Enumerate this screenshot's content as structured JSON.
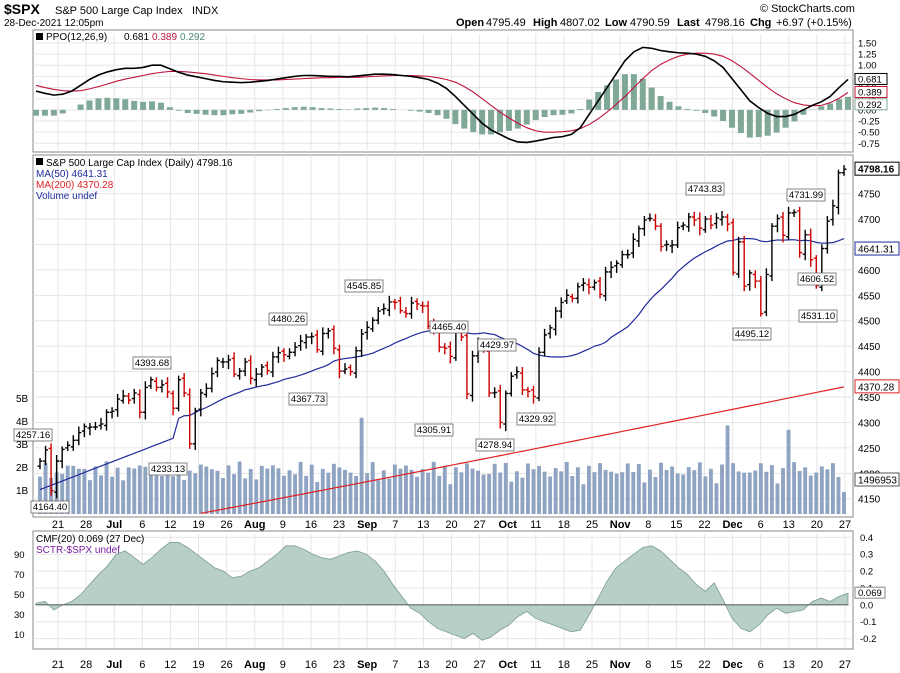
{
  "header": {
    "symbol": "$SPX",
    "name": "S&P 500 Large Cap Index",
    "exchange": "INDX",
    "date": "28-Dec-2021 12:05pm",
    "watermark": "© StockCharts.com",
    "open_label": "Open",
    "open": "4795.49",
    "high_label": "High",
    "high": "4807.02",
    "low_label": "Low",
    "low": "4790.59",
    "last_label": "Last",
    "last": "4798.16",
    "chg_label": "Chg",
    "chg": "+6.97 (+0.15%)"
  },
  "ppo_legend": {
    "label": "PPO(12,26,9)",
    "ppo": "0.681",
    "signal": "0.389",
    "hist": "0.292"
  },
  "price_legend": {
    "title": "S&P 500 Large Cap Index (Daily) 4798.16",
    "ma50": "MA(50) 4641.31",
    "ma200": "MA(200) 4370.28",
    "volume": "Volume undef"
  },
  "cmf_legend": {
    "cmf": "CMF(20) 0.069 (27 Dec)",
    "sctr": "SCTR-$SPX undef"
  },
  "colors": {
    "up": "#000000",
    "down": "#cc0000",
    "ma50": "#1f2a9c",
    "ma200": "#e02020",
    "volume": "#8fa3c2",
    "ppo": "#000000",
    "signal": "#c0143c",
    "hist": "#7fa897",
    "cmf": "#b7cfc7",
    "grid": "#e6e6e6"
  },
  "chart_data": [
    {
      "type": "candlestick",
      "title": "S&P 500 Large Cap Index (Daily) 4798.16",
      "y_axis_ticks": [
        4150,
        4200,
        4250,
        4300,
        4350,
        4400,
        4450,
        4500,
        4550,
        4600,
        4650,
        4700,
        4750
      ],
      "ylim": [
        4120,
        4820
      ],
      "x_labels": [
        "21",
        "28",
        "Jul",
        "6",
        "12",
        "19",
        "26",
        "Aug",
        "9",
        "16",
        "23",
        "Sep",
        "7",
        "13",
        "20",
        "27",
        "Oct",
        "11",
        "18",
        "25",
        "Nov",
        "8",
        "15",
        "22",
        "Dec",
        "6",
        "13",
        "20",
        "27"
      ],
      "closes": [
        4224,
        4246,
        4166,
        4224,
        4247,
        4255,
        4265,
        4280,
        4292,
        4291,
        4291,
        4297,
        4320,
        4322,
        4346,
        4352,
        4344,
        4358,
        4320,
        4369,
        4384,
        4369,
        4374,
        4360,
        4328,
        4384,
        4358,
        4258,
        4323,
        4358,
        4367,
        4396,
        4422,
        4419,
        4423,
        4395,
        4401,
        4419,
        4387,
        4395,
        4409,
        4402,
        4429,
        4437,
        4433,
        4438,
        4448,
        4460,
        4468,
        4469,
        4443,
        4475,
        4480,
        4446,
        4401,
        4405,
        4400,
        4441,
        4474,
        4487,
        4501,
        4519,
        4524,
        4537,
        4536,
        4520,
        4514,
        4535,
        4533,
        4529,
        4489,
        4481,
        4448,
        4446,
        4430,
        4480,
        4468,
        4356,
        4431,
        4455,
        4443,
        4358,
        4359,
        4300,
        4357,
        4391,
        4400,
        4364,
        4361,
        4351,
        4438,
        4472,
        4486,
        4519,
        4536,
        4550,
        4544,
        4567,
        4574,
        4566,
        4575,
        4552,
        4596,
        4605,
        4613,
        4630,
        4630,
        4660,
        4681,
        4698,
        4701,
        4686,
        4646,
        4650,
        4649,
        4683,
        4688,
        4704,
        4698,
        4682,
        4700,
        4688,
        4702,
        4704,
        4690,
        4595,
        4655,
        4568,
        4594,
        4578,
        4514,
        4591,
        4686,
        4701,
        4668,
        4712,
        4713,
        4634,
        4669,
        4620,
        4569,
        4642,
        4696,
        4726,
        4791,
        4798
      ],
      "ma50_end": 4641.31,
      "ma200_end": 4370.28,
      "annotations": [
        {
          "label": "4257.16"
        },
        {
          "label": "4164.40"
        },
        {
          "label": "4393.68"
        },
        {
          "label": "4233.13"
        },
        {
          "label": "4480.26"
        },
        {
          "label": "4367.73"
        },
        {
          "label": "4545.85"
        },
        {
          "label": "4465.40"
        },
        {
          "label": "4305.91"
        },
        {
          "label": "4429.97"
        },
        {
          "label": "4278.94"
        },
        {
          "label": "4329.92"
        },
        {
          "label": "4743.83"
        },
        {
          "label": "4495.12"
        },
        {
          "label": "4731.99"
        },
        {
          "label": "4606.52"
        },
        {
          "label": "4531.10"
        }
      ],
      "axis_boxes": {
        "last": "4798.16",
        "ma50": "4641.31",
        "ma200": "4370.28",
        "volume": "1496953"
      },
      "volume_ticks": [
        "5B",
        "4B",
        "3B",
        "2B",
        "1B"
      ]
    },
    {
      "type": "line",
      "name": "PPO(12,26,9)",
      "y_axis_ticks": [
        "1.50",
        "1.25",
        "1.00",
        "0.75",
        "0.50",
        "0.25",
        "0.00",
        "-0.25",
        "-0.50",
        "-0.75"
      ],
      "ylim": [
        -0.9,
        1.7
      ],
      "ppo": [
        0.42,
        0.37,
        0.33,
        0.35,
        0.42,
        0.55,
        0.68,
        0.78,
        0.85,
        0.9,
        0.93,
        0.93,
        0.95,
        1.0,
        1.0,
        0.92,
        0.84,
        0.78,
        0.74,
        0.7,
        0.66,
        0.63,
        0.62,
        0.61,
        0.62,
        0.64,
        0.66,
        0.69,
        0.72,
        0.75,
        0.77,
        0.77,
        0.76,
        0.75,
        0.75,
        0.74,
        0.76,
        0.78,
        0.8,
        0.8,
        0.79,
        0.77,
        0.75,
        0.72,
        0.68,
        0.6,
        0.48,
        0.3,
        0.1,
        -0.1,
        -0.3,
        -0.45,
        -0.55,
        -0.65,
        -0.72,
        -0.73,
        -0.7,
        -0.66,
        -0.62,
        -0.6,
        -0.55,
        -0.4,
        -0.1,
        0.2,
        0.5,
        0.8,
        1.1,
        1.3,
        1.4,
        1.38,
        1.33,
        1.3,
        1.28,
        1.27,
        1.25,
        1.2,
        1.1,
        0.95,
        0.7,
        0.45,
        0.2,
        0.05,
        -0.08,
        -0.15,
        -0.15,
        -0.1,
        0.0,
        0.1,
        0.18,
        0.3,
        0.5,
        0.681
      ],
      "signal": [
        0.55,
        0.5,
        0.46,
        0.43,
        0.42,
        0.43,
        0.47,
        0.52,
        0.58,
        0.64,
        0.69,
        0.73,
        0.77,
        0.81,
        0.84,
        0.86,
        0.86,
        0.85,
        0.83,
        0.81,
        0.78,
        0.75,
        0.72,
        0.7,
        0.68,
        0.67,
        0.67,
        0.67,
        0.68,
        0.69,
        0.7,
        0.71,
        0.72,
        0.72,
        0.73,
        0.73,
        0.73,
        0.74,
        0.75,
        0.76,
        0.77,
        0.77,
        0.77,
        0.76,
        0.75,
        0.72,
        0.68,
        0.62,
        0.52,
        0.4,
        0.25,
        0.1,
        -0.05,
        -0.18,
        -0.3,
        -0.4,
        -0.47,
        -0.5,
        -0.5,
        -0.49,
        -0.47,
        -0.42,
        -0.33,
        -0.2,
        -0.05,
        0.12,
        0.3,
        0.5,
        0.7,
        0.88,
        1.02,
        1.12,
        1.2,
        1.25,
        1.27,
        1.27,
        1.25,
        1.2,
        1.1,
        0.97,
        0.82,
        0.66,
        0.5,
        0.36,
        0.25,
        0.16,
        0.11,
        0.09,
        0.1,
        0.16,
        0.26,
        0.389
      ]
    },
    {
      "type": "area",
      "name": "CMF(20)",
      "y_axis_ticks_right": [
        "0.4",
        "0.3",
        "0.2",
        "0.1",
        "0.0",
        "-0.1",
        "-0.2"
      ],
      "y_axis_ticks_left": [
        "90",
        "70",
        "50",
        "30",
        "10"
      ],
      "ylim": [
        -0.25,
        0.42
      ],
      "values": [
        0.01,
        0.02,
        -0.03,
        0.0,
        0.02,
        0.06,
        0.12,
        0.18,
        0.23,
        0.3,
        0.32,
        0.28,
        0.24,
        0.28,
        0.33,
        0.37,
        0.37,
        0.34,
        0.3,
        0.26,
        0.22,
        0.2,
        0.16,
        0.17,
        0.2,
        0.22,
        0.26,
        0.3,
        0.35,
        0.35,
        0.33,
        0.3,
        0.28,
        0.27,
        0.29,
        0.31,
        0.32,
        0.3,
        0.26,
        0.2,
        0.12,
        0.05,
        -0.02,
        -0.05,
        -0.1,
        -0.14,
        -0.16,
        -0.18,
        -0.2,
        -0.17,
        -0.21,
        -0.19,
        -0.15,
        -0.12,
        -0.07,
        -0.04,
        -0.08,
        -0.1,
        -0.12,
        -0.14,
        -0.16,
        -0.15,
        -0.06,
        0.04,
        0.14,
        0.22,
        0.26,
        0.3,
        0.34,
        0.35,
        0.32,
        0.27,
        0.22,
        0.18,
        0.12,
        0.08,
        0.13,
        0.03,
        -0.08,
        -0.14,
        -0.16,
        -0.12,
        -0.06,
        -0.02,
        -0.05,
        -0.04,
        -0.03,
        0.02,
        0.04,
        0.02,
        0.05,
        0.069
      ]
    }
  ]
}
